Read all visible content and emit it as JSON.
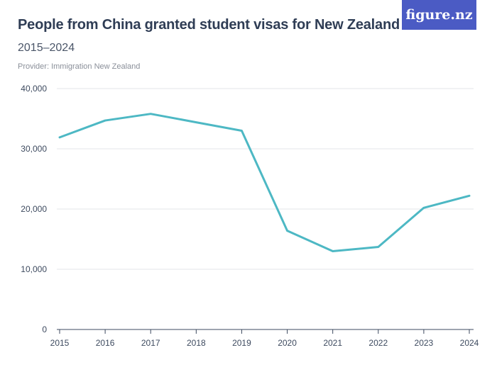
{
  "header": {
    "title": "People from China granted student visas for New Zealand",
    "subtitle": "2015–2024",
    "provider": "Provider: Immigration New Zealand",
    "logo_text": "figure.nz"
  },
  "colors": {
    "line": "#4db8c4",
    "grid": "#e3e5e8",
    "axis": "#3d4a5f",
    "logo_bg": "#4b5bc4"
  },
  "chart_data": {
    "type": "line",
    "title": "People from China granted student visas for New Zealand",
    "subtitle": "2015–2024",
    "x": [
      2015,
      2016,
      2017,
      2018,
      2019,
      2020,
      2021,
      2022,
      2023,
      2024
    ],
    "series": [
      {
        "values": [
          31900,
          34700,
          35800,
          34400,
          33000,
          16400,
          13000,
          13700,
          20200,
          22200
        ]
      }
    ],
    "ylim": [
      0,
      40000
    ],
    "yticks": [
      0,
      10000,
      20000,
      30000,
      40000
    ],
    "ytick_labels": [
      "0",
      "10,000",
      "20,000",
      "30,000",
      "40,000"
    ],
    "xtick_labels": [
      "2015",
      "2016",
      "2017",
      "2018",
      "2019",
      "2020",
      "2021",
      "2022",
      "2023",
      "2024"
    ],
    "grid": true,
    "legend": "none"
  }
}
